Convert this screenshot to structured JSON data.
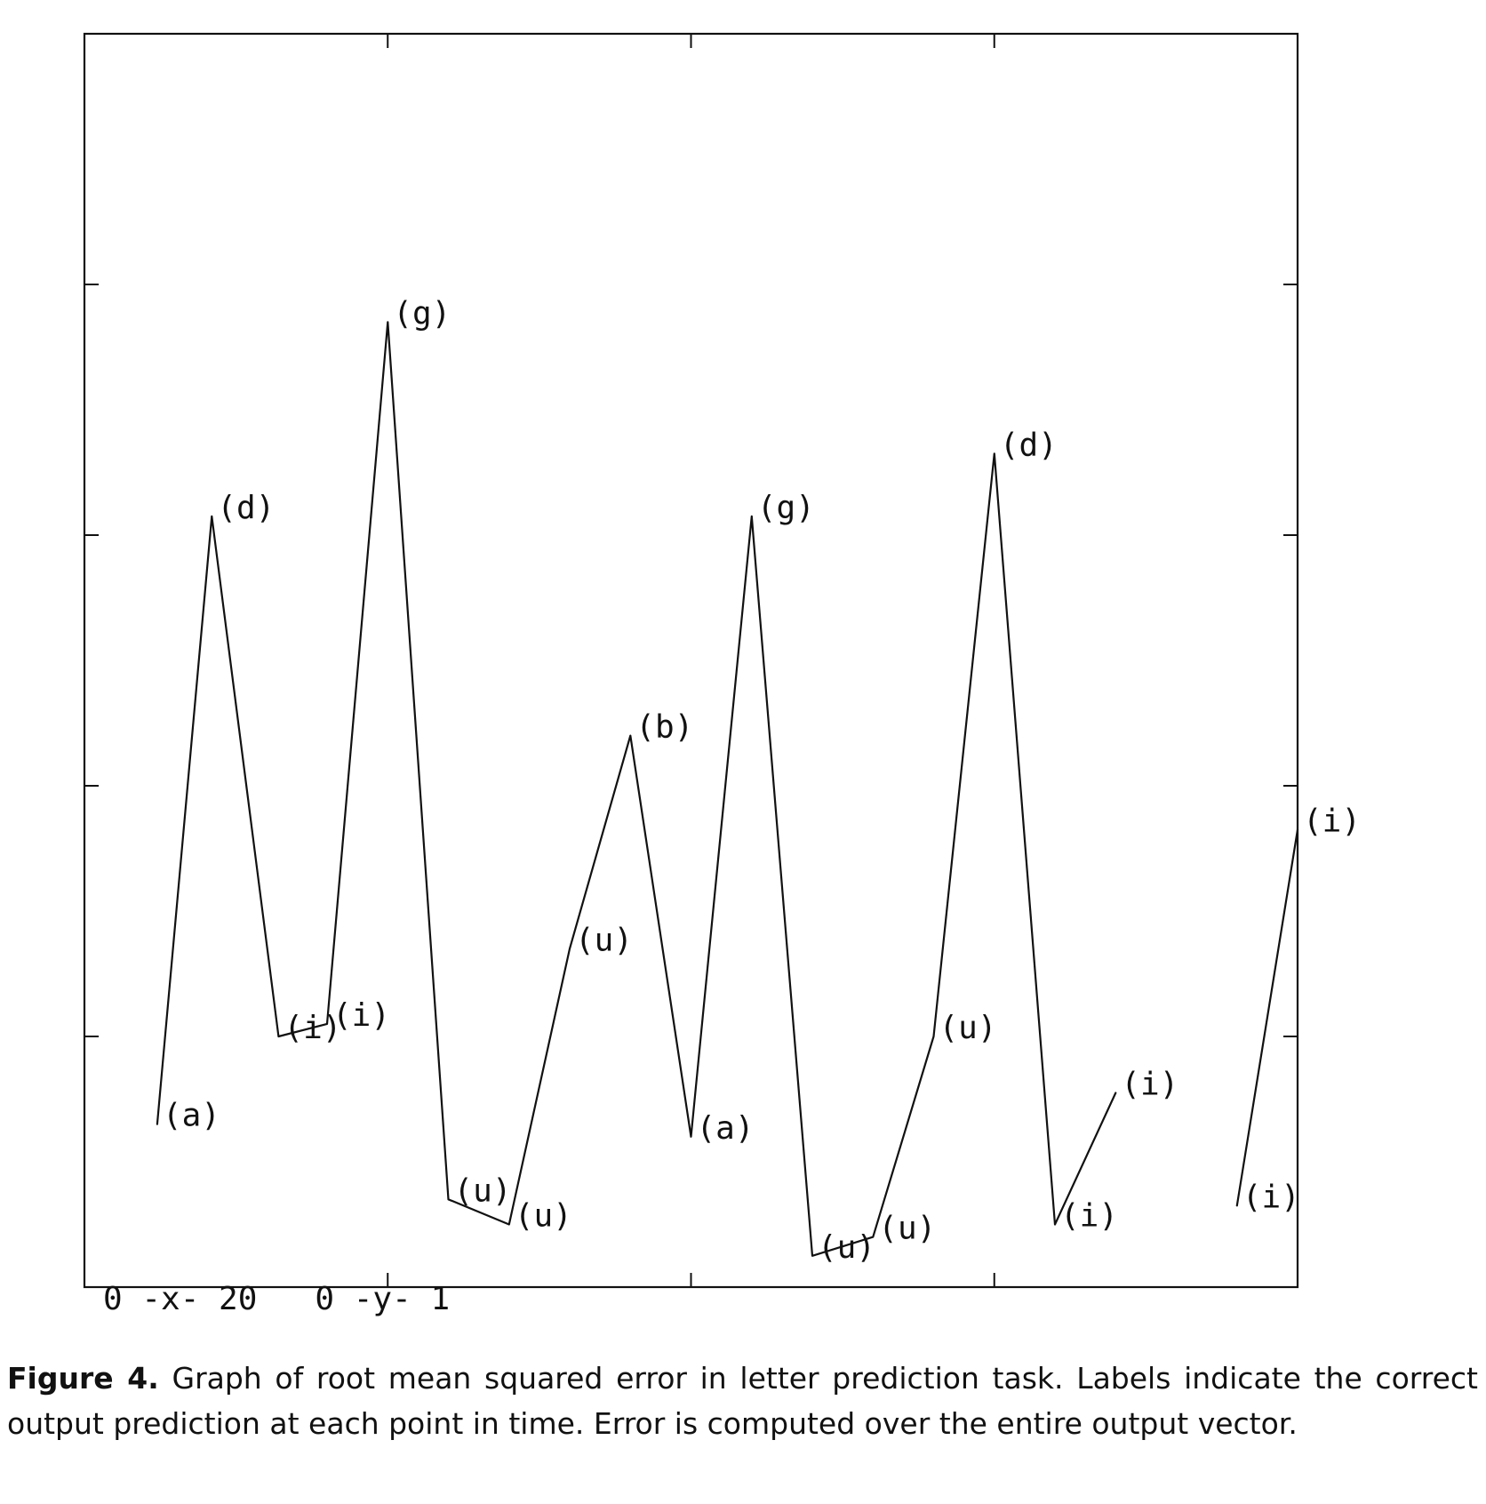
{
  "chart_data": {
    "type": "line",
    "range_label": "0 -x- 20   0 -y- 1",
    "xlim": [
      0,
      20
    ],
    "ylim": [
      0,
      1
    ],
    "x_ticks": [
      0,
      5,
      10,
      15,
      20
    ],
    "y_ticks": [
      0,
      0.2,
      0.4,
      0.6,
      0.8,
      1
    ],
    "grid": false,
    "segments": [
      [
        {
          "x": 1.2,
          "y": 0.13,
          "label": "(a)"
        },
        {
          "x": 2.1,
          "y": 0.615,
          "label": "(d)"
        },
        {
          "x": 3.2,
          "y": 0.2,
          "label": "(i)"
        },
        {
          "x": 4.0,
          "y": 0.21,
          "label": "(i)"
        },
        {
          "x": 5.0,
          "y": 0.77,
          "label": "(g)"
        },
        {
          "x": 6.0,
          "y": 0.07,
          "label": "(u)"
        },
        {
          "x": 7.0,
          "y": 0.05,
          "label": "(u)"
        },
        {
          "x": 8.0,
          "y": 0.27,
          "label": "(u)"
        },
        {
          "x": 9.0,
          "y": 0.44,
          "label": "(b)"
        },
        {
          "x": 10.0,
          "y": 0.12,
          "label": "(a)"
        },
        {
          "x": 11.0,
          "y": 0.615,
          "label": "(g)"
        },
        {
          "x": 12.0,
          "y": 0.025,
          "label": "(u)"
        },
        {
          "x": 13.0,
          "y": 0.04,
          "label": "(u)"
        },
        {
          "x": 14.0,
          "y": 0.2,
          "label": "(u)"
        },
        {
          "x": 15.0,
          "y": 0.665,
          "label": "(d)"
        },
        {
          "x": 16.0,
          "y": 0.05,
          "label": "(i)"
        },
        {
          "x": 17.0,
          "y": 0.155,
          "label": "(i)"
        }
      ],
      [
        {
          "x": 19.0,
          "y": 0.065,
          "label": "(i)"
        },
        {
          "x": 20.0,
          "y": 0.365,
          "label": "(i)"
        }
      ]
    ]
  },
  "caption": {
    "figure_label": "Figure 4.",
    "text": "Graph of root mean squared error in letter prediction task. Labels indicate the correct output prediction at each point in time. Error is computed over the entire output vector."
  }
}
